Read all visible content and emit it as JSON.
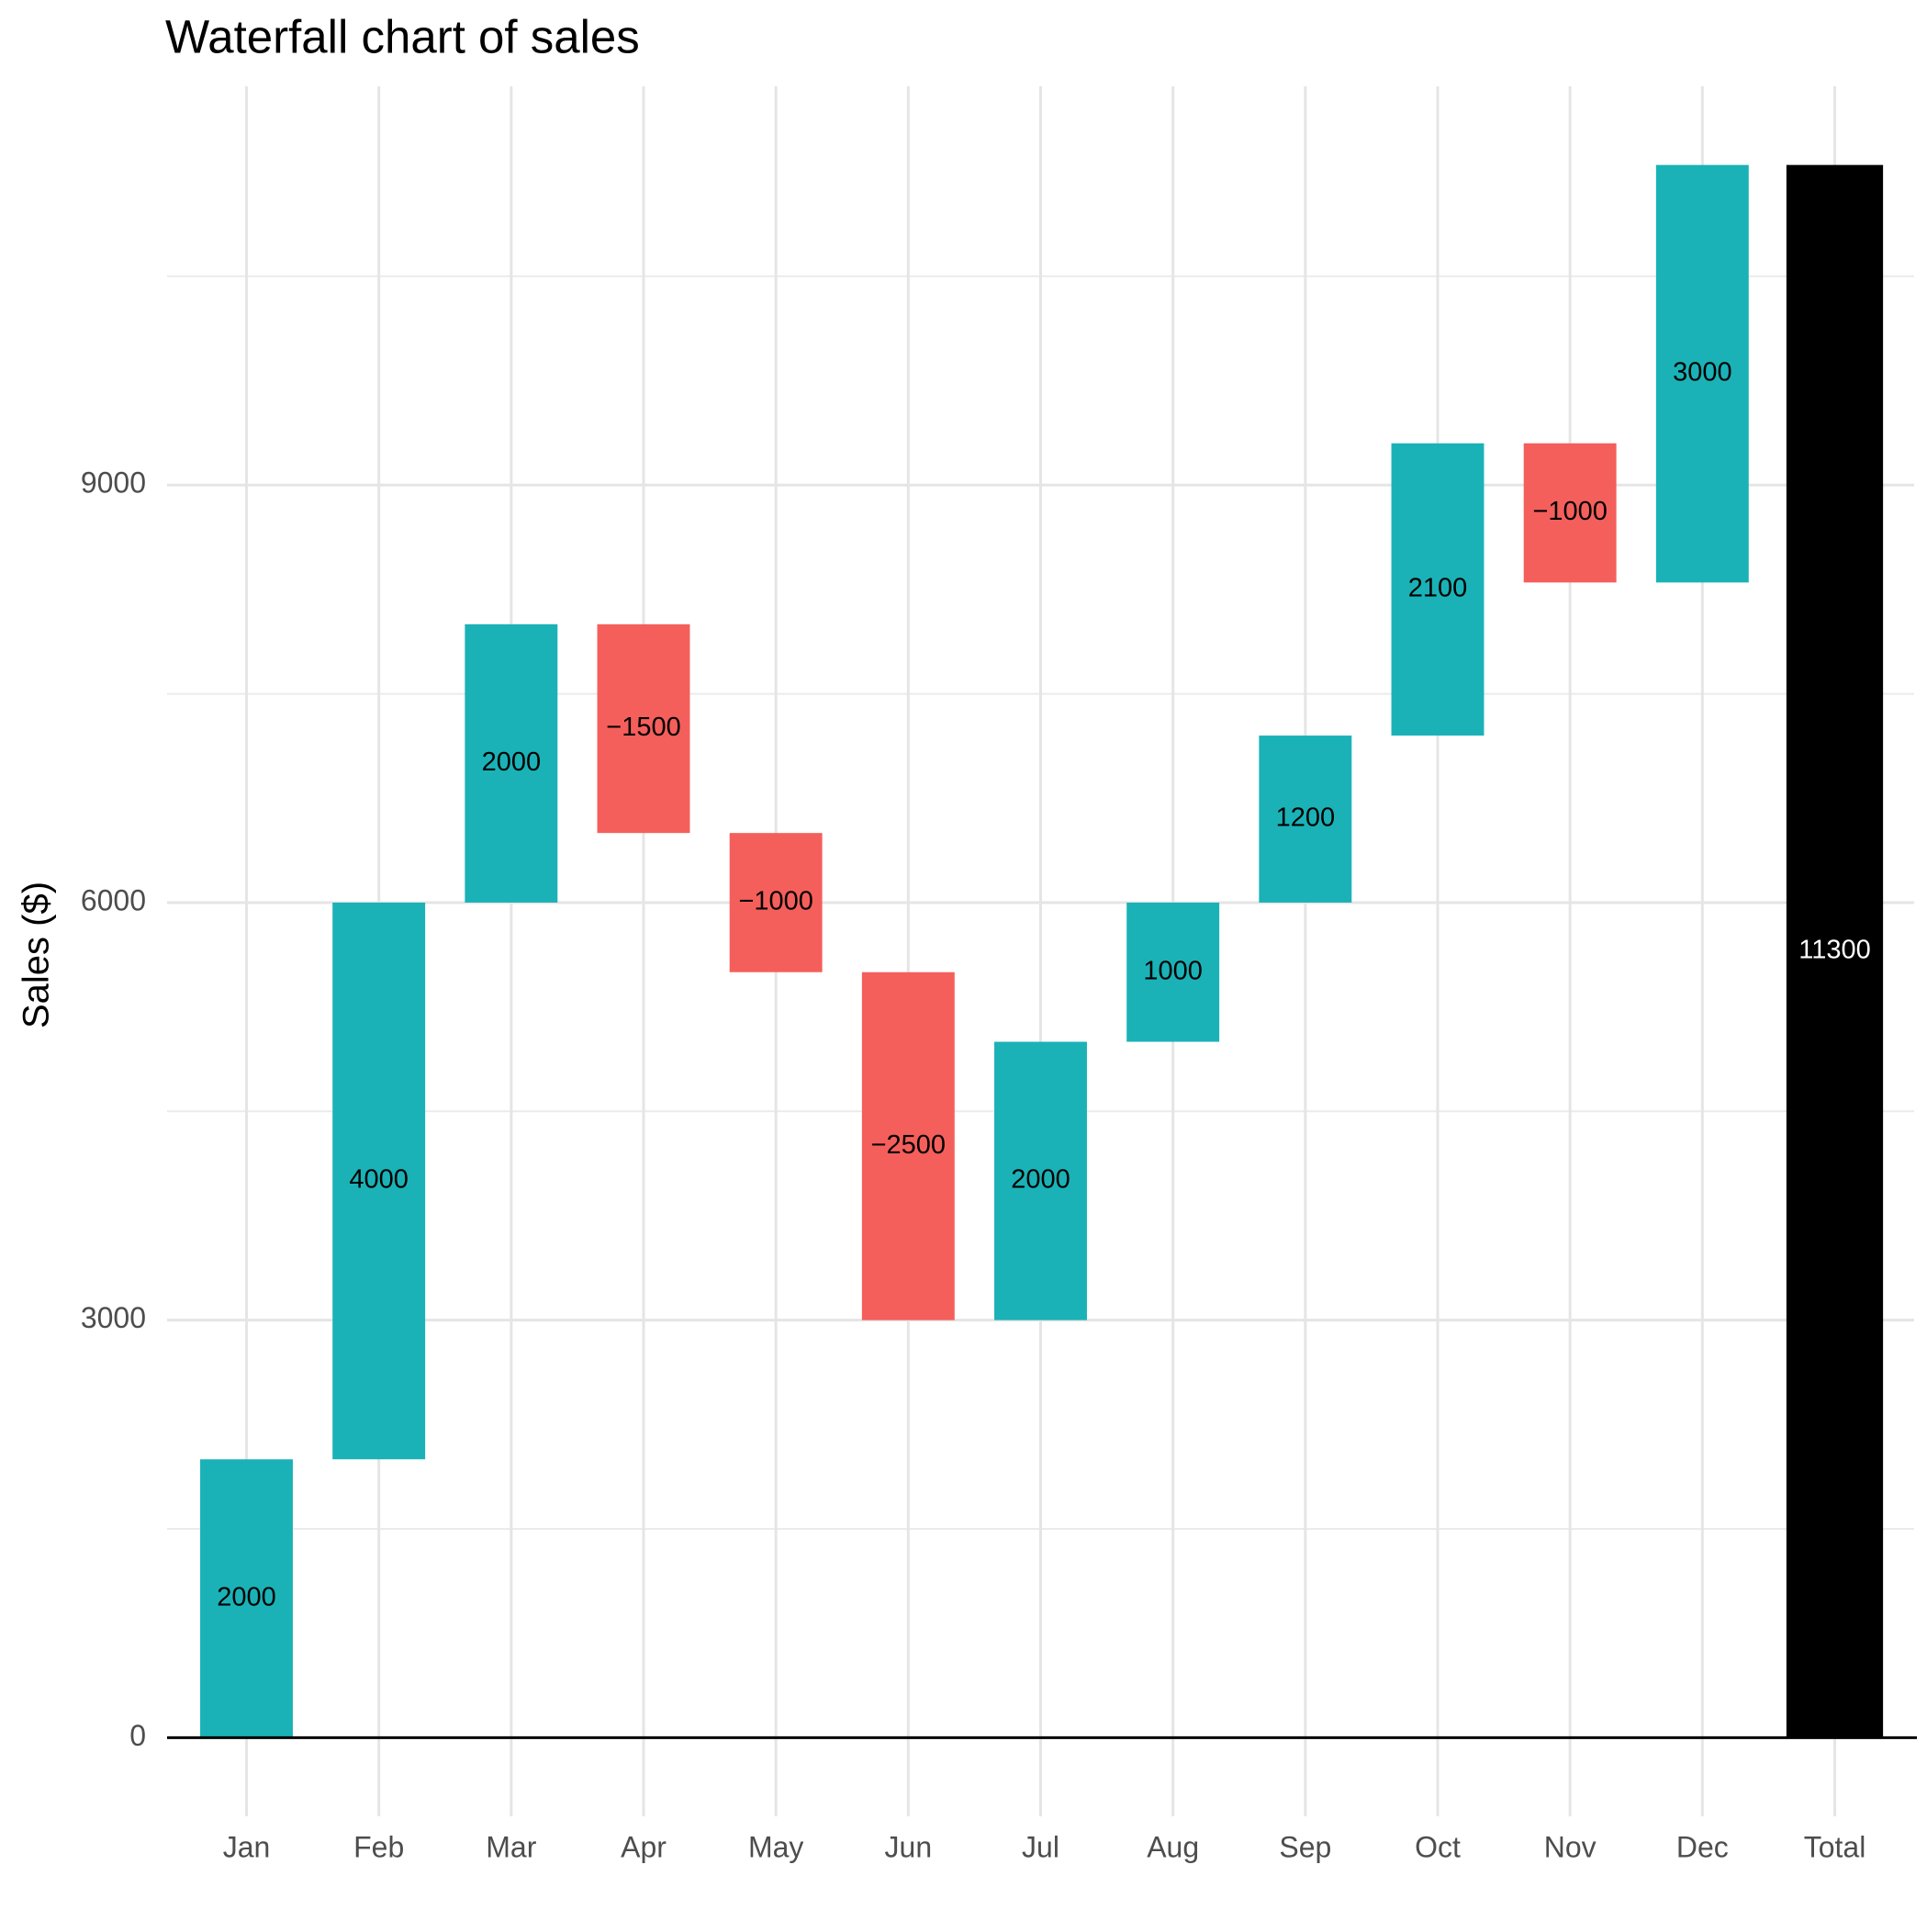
{
  "chart_data": {
    "type": "waterfall",
    "title": "Waterfall chart of sales",
    "y_label": "Sales ($)",
    "categories": [
      "Jan",
      "Feb",
      "Mar",
      "Apr",
      "May",
      "Jun",
      "Jul",
      "Aug",
      "Sep",
      "Oct",
      "Nov",
      "Dec"
    ],
    "values": [
      2000,
      4000,
      2000,
      -1500,
      -1000,
      -2500,
      2000,
      1000,
      1200,
      2100,
      -1000,
      3000
    ],
    "value_labels": [
      "2000",
      "4000",
      "2000",
      "−1500",
      "−1000",
      "−2500",
      "2000",
      "1000",
      "1200",
      "2100",
      "−1000",
      "3000"
    ],
    "increase_color": "#1ab2b7",
    "decrease_color": "#f45f5b",
    "total": {
      "category": "Total",
      "value": 11300,
      "color": "#000000"
    },
    "ylim": [
      -565,
      11865
    ],
    "yticks": [
      0,
      3000,
      6000,
      9000
    ],
    "y_minor_ticks": [
      1500,
      4500,
      7500,
      10500
    ],
    "grid": true
  }
}
